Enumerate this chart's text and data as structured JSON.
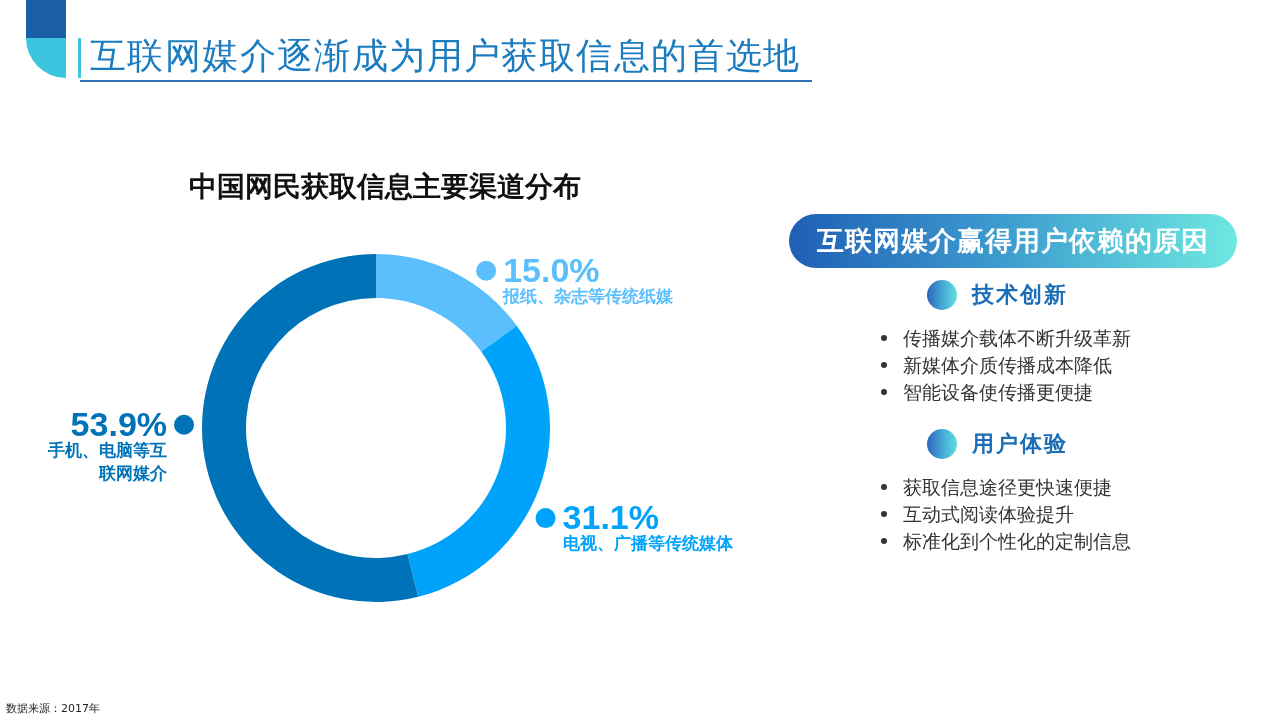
{
  "chart_data": [
    {
      "type": "donut",
      "title": "互联网媒介逐渐成为用户获取信息的首选地",
      "subtitle": "中国网民获取信息主要渠道分布",
      "categories": [
        "报纸、杂志等传统纸媒",
        "电视、广播等传统媒体",
        "手机、电脑等互联网媒介"
      ],
      "values": [
        15.0,
        31.1,
        53.9
      ],
      "colors": [
        "#5bbffd",
        "#00a3fb",
        "#0073b8"
      ],
      "value_labels": [
        "15.0%",
        "31.1%",
        "53.9%"
      ],
      "legend": "right",
      "annotations": [
        "数据来源：2017年"
      ]
    },
    {
      "type": "other",
      "title": "互联网媒介赢得用户依赖的原因"
    },
    {
      "type": "other",
      "title": "技术创新",
      "annotations": [
        "传播媒介载体不断升级革新",
        "新媒体介质传播成本降低",
        "智能设备使传播更便捷"
      ]
    },
    {
      "type": "other",
      "title": "用户体验",
      "annotations": [
        "获取信息途径更快速便捷",
        "互动式阅读体验提升",
        "标准化到个性化的定制信息"
      ]
    }
  ]
}
